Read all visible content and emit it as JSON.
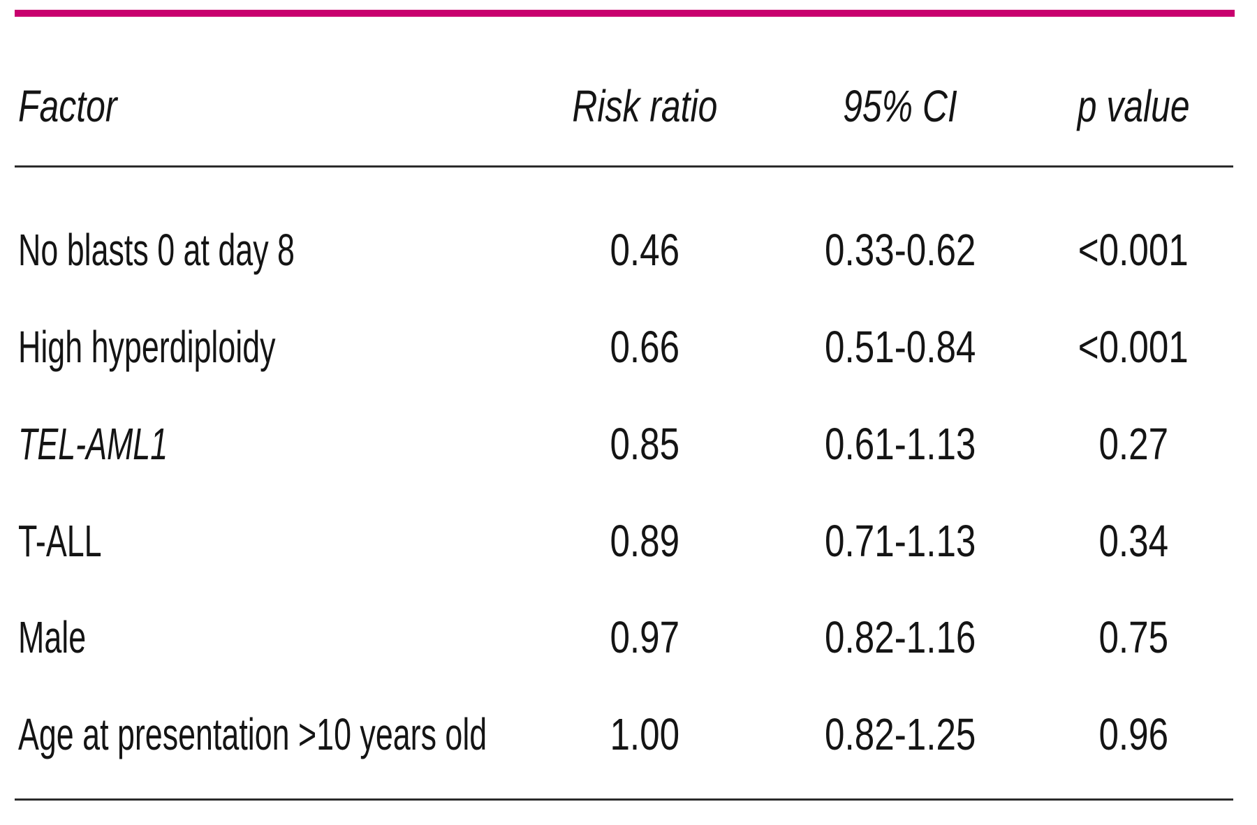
{
  "colors": {
    "accent_bar": "#c8006e",
    "rule": "#2b2b2b",
    "text": "#141414"
  },
  "table": {
    "columns": [
      "Factor",
      "Risk ratio",
      "95% CI",
      "p value"
    ],
    "rows": [
      {
        "factor": "No blasts 0 at day 8",
        "risk_ratio": "0.46",
        "ci_95": "0.33-0.62",
        "p_value": "<0.001"
      },
      {
        "factor": "High hyperdiploidy",
        "risk_ratio": "0.66",
        "ci_95": "0.51-0.84",
        "p_value": "<0.001"
      },
      {
        "factor": "TEL-AML1",
        "risk_ratio": "0.85",
        "ci_95": "0.61-1.13",
        "p_value": "0.27"
      },
      {
        "factor": "T-ALL",
        "risk_ratio": "0.89",
        "ci_95": "0.71-1.13",
        "p_value": "0.34"
      },
      {
        "factor": "Male",
        "risk_ratio": "0.97",
        "ci_95": "0.82-1.16",
        "p_value": "0.75"
      },
      {
        "factor": "Age at presentation >10 years old",
        "risk_ratio": "1.00",
        "ci_95": "0.82-1.25",
        "p_value": "0.96"
      }
    ]
  }
}
